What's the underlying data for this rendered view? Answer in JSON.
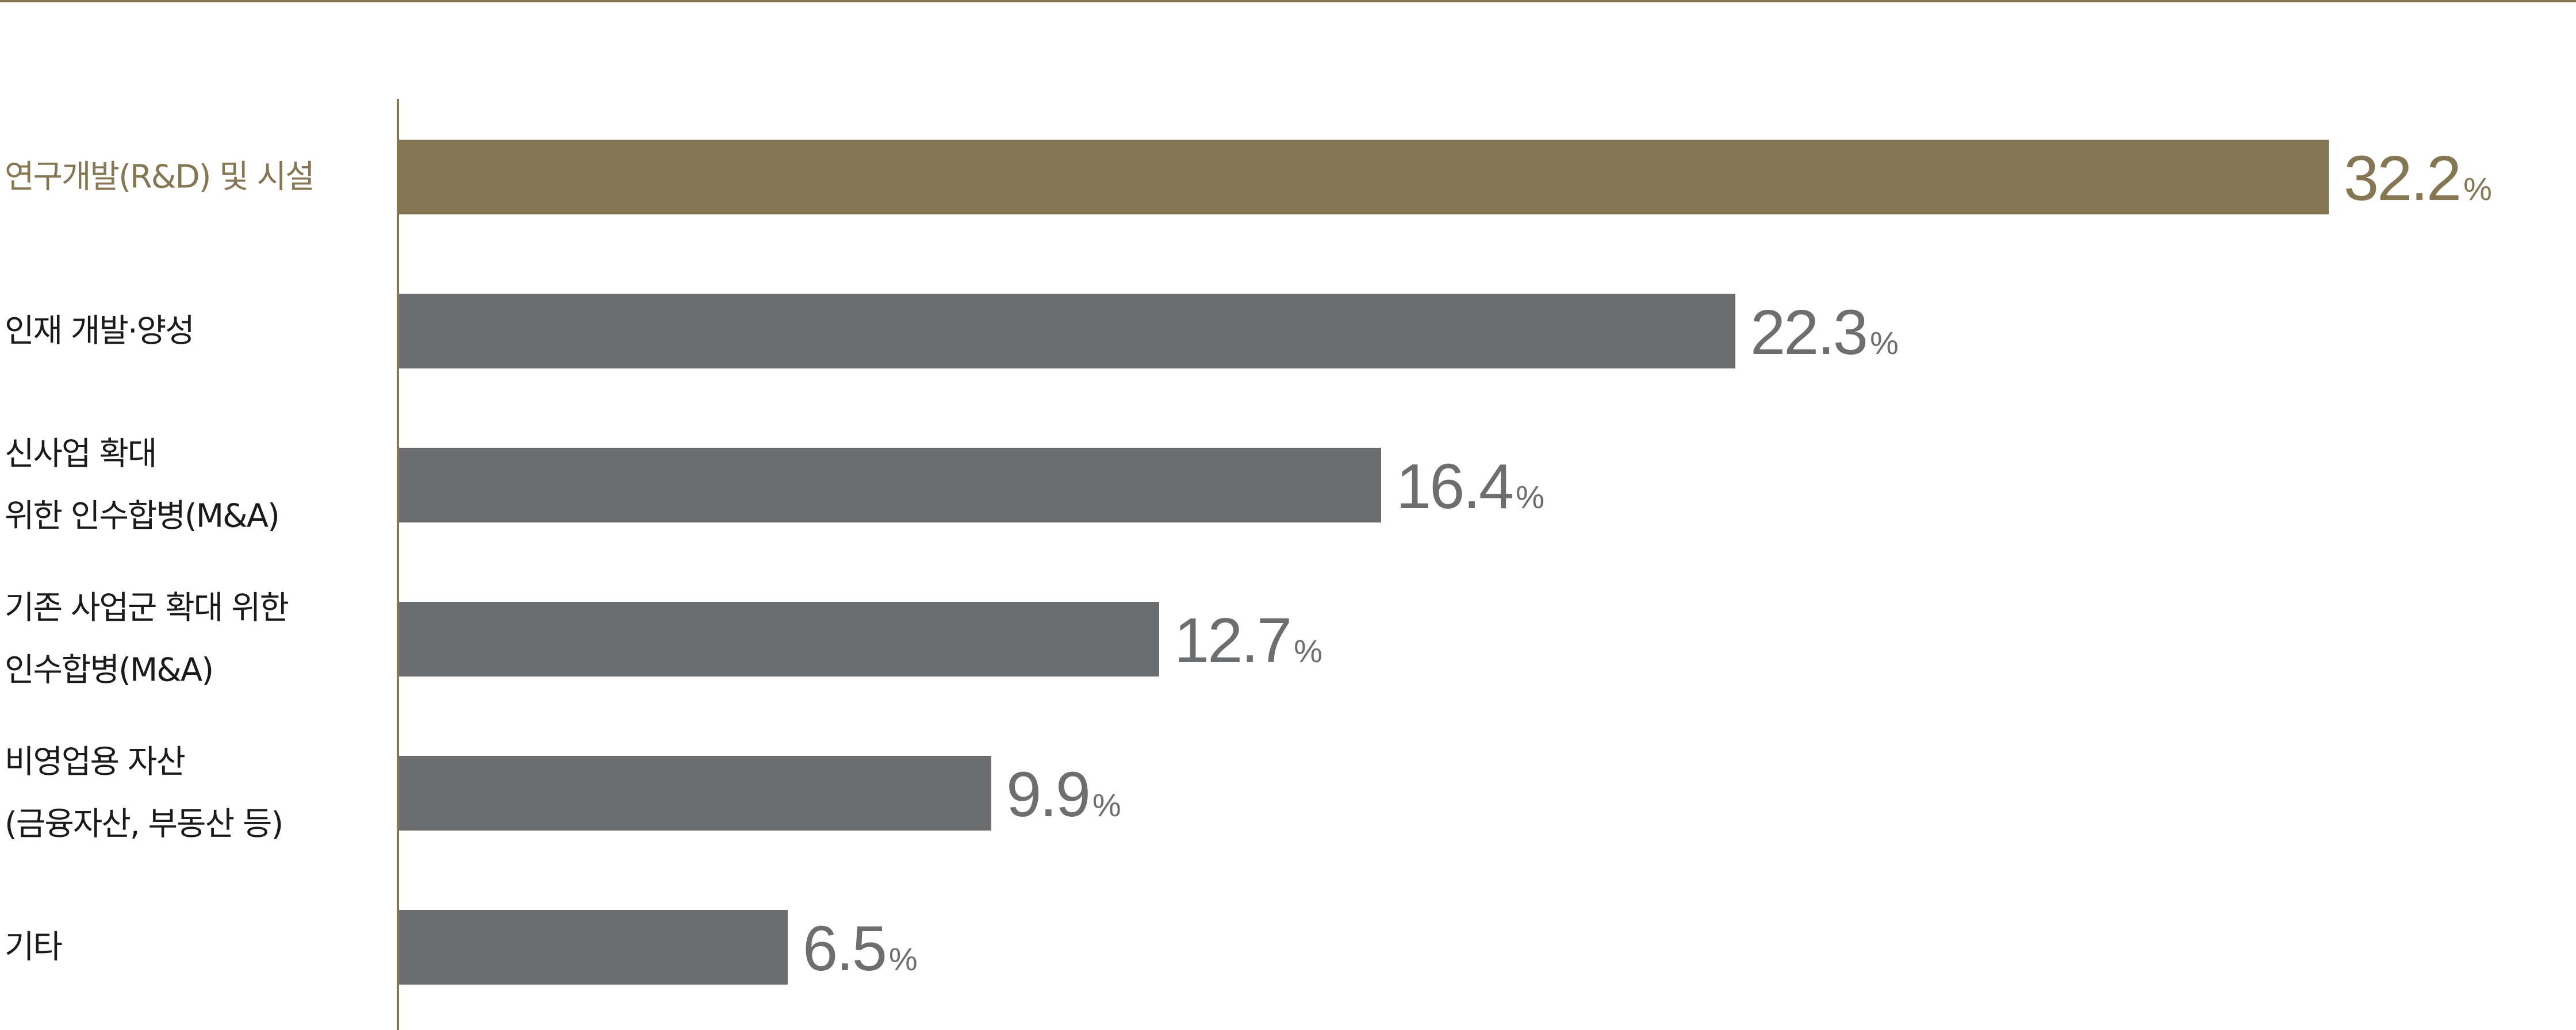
{
  "chart_data": {
    "type": "bar",
    "orientation": "horizontal",
    "categories": [
      [
        "연구개발(R&D) 및 시설"
      ],
      [
        "인재 개발·양성"
      ],
      [
        "신사업 확대",
        "위한 인수합병(M&A)"
      ],
      [
        "기존 사업군 확대 위한",
        "인수합병(M&A)"
      ],
      [
        "비영업용 자산",
        "(금융자산, 부동산 등)"
      ],
      [
        "기타"
      ]
    ],
    "values": [
      32.2,
      22.3,
      16.4,
      12.7,
      9.9,
      6.5
    ],
    "value_labels": [
      "32.2",
      "22.3",
      "16.4",
      "12.7",
      "9.9",
      "6.5"
    ],
    "unit": "%",
    "highlight_index": 0,
    "xlim": [
      0,
      32.2
    ],
    "grid": false,
    "legend": "none",
    "colors": {
      "highlight": "#857754",
      "bar": "#6d6e70",
      "highlight_label": "#857754",
      "category_label": "#1a1a1a",
      "value_label": "#6d6e70",
      "rule": "#857754",
      "axis": "#857754"
    }
  }
}
